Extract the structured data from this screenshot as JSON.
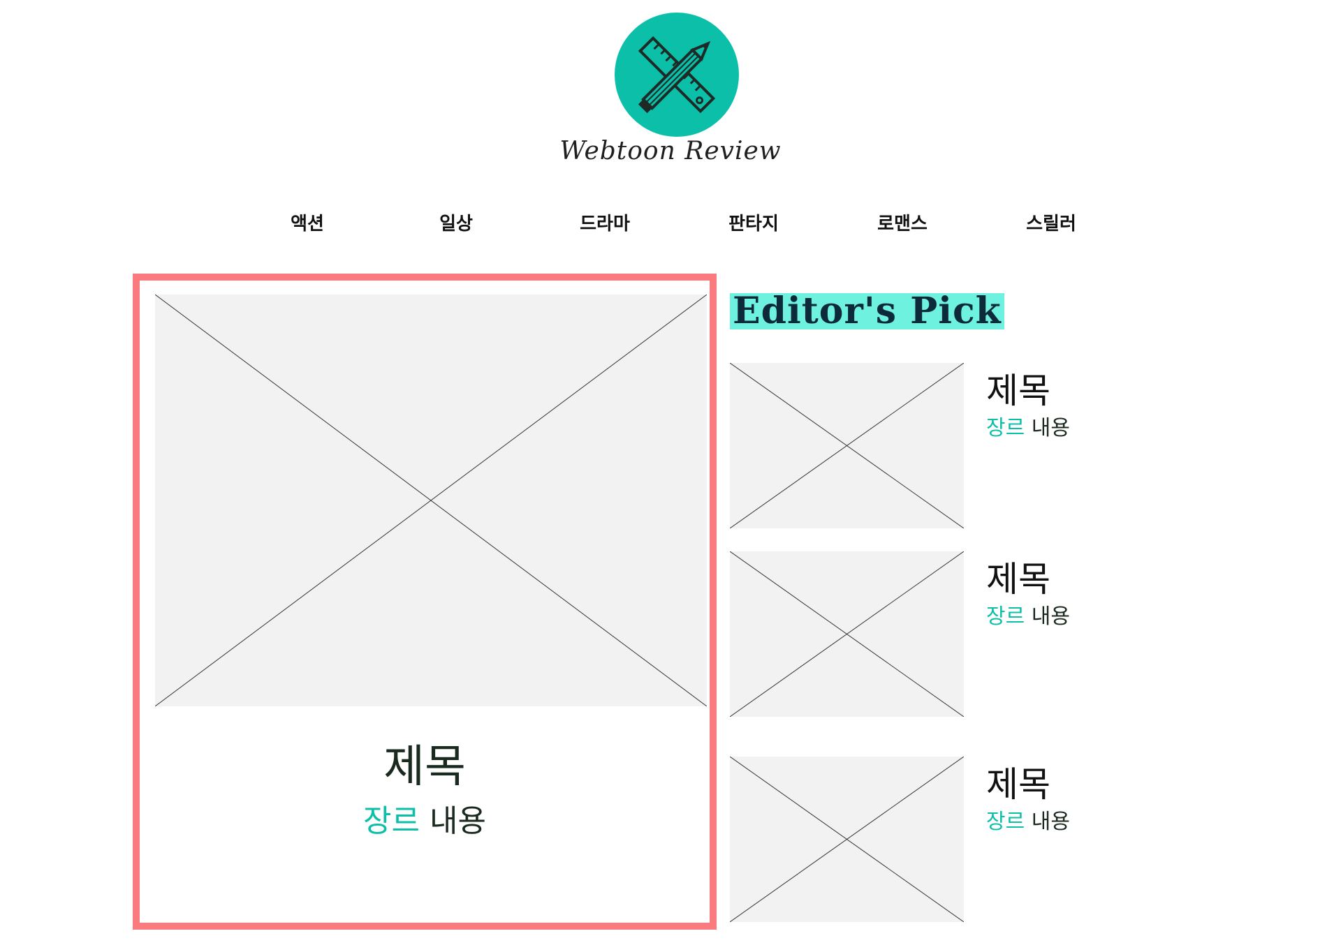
{
  "brand": {
    "logo_text": "Webtoon Review",
    "accent_color": "#0bbfa9",
    "highlight_color": "#6ef2df",
    "frame_color": "#f97b7e",
    "logo_icon": "crossed-pencil-ruler-icon"
  },
  "nav": {
    "items": [
      "액션",
      "일상",
      "드라마",
      "판타지",
      "로맨스",
      "스릴러"
    ]
  },
  "featured": {
    "image_icon": "image-placeholder-icon",
    "title": "제목",
    "genre": "장르",
    "content": "내용"
  },
  "editors_pick": {
    "heading": "Editor's Pick",
    "items": [
      {
        "title": "제목",
        "genre": "장르",
        "content": "내용"
      },
      {
        "title": "제목",
        "genre": "장르",
        "content": "내용"
      },
      {
        "title": "제목",
        "genre": "장르",
        "content": "내용"
      }
    ]
  }
}
